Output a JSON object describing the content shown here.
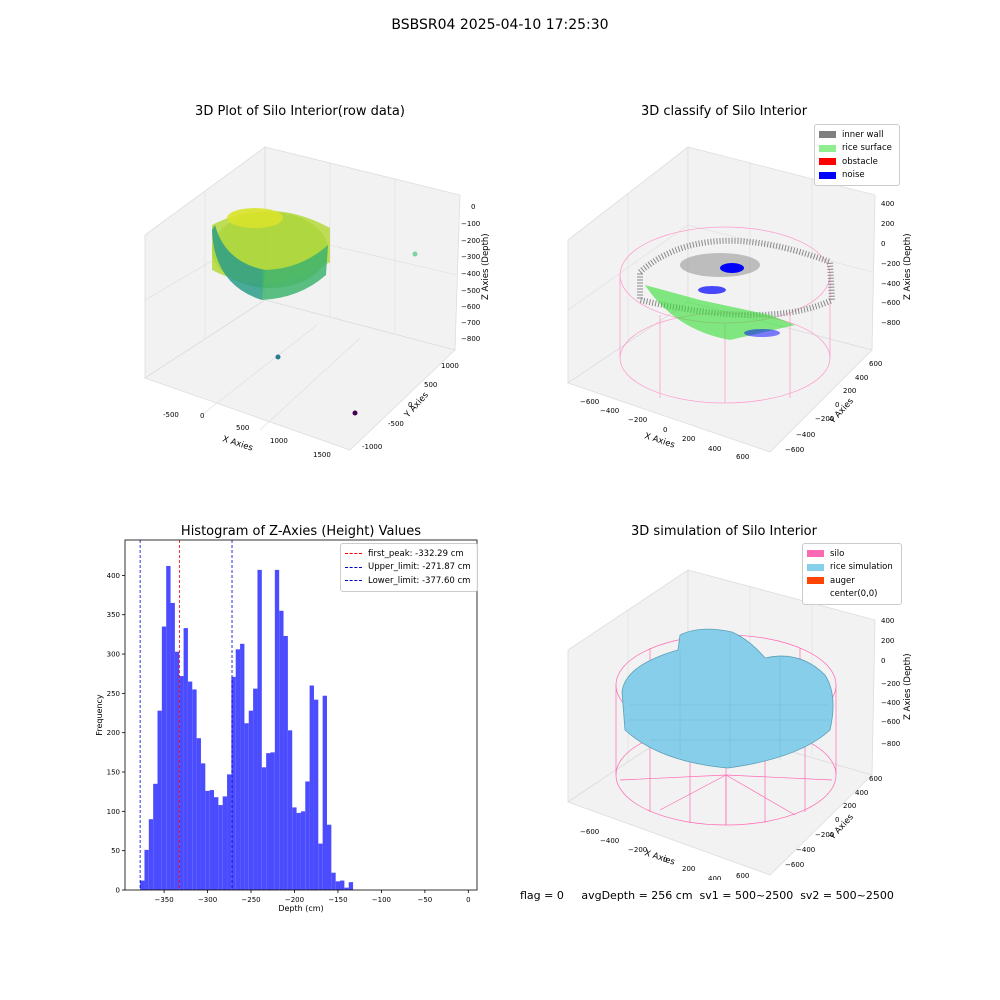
{
  "suptitle": "BSBSR04 2025-04-10 17:25:30",
  "panels": {
    "raw": {
      "title": "3D Plot of Silo Interior(row data)",
      "xlabel": "X Axies",
      "ylabel": "Y Axies",
      "zlabel": "Z Axies (Depth)",
      "xticks": [
        "-500",
        "0",
        "500",
        "1000",
        "1500"
      ],
      "yticks": [
        "1000",
        "500",
        "0",
        "-500",
        "-1000"
      ],
      "zticks": [
        "0",
        "−100",
        "−200",
        "−300",
        "−400",
        "−500",
        "−600",
        "−700",
        "−800"
      ]
    },
    "classify": {
      "title": "3D classify of Silo Interior",
      "xlabel": "X Axies",
      "ylabel": "Y Axies",
      "zlabel": "Z Axies (Depth)",
      "xticks": [
        "−600",
        "−400",
        "−200",
        "0",
        "200",
        "400",
        "600"
      ],
      "yticks": [
        "600",
        "400",
        "200",
        "0",
        "−200",
        "−400",
        "−600"
      ],
      "zticks": [
        "400",
        "200",
        "0",
        "−200",
        "−400",
        "−600",
        "−800"
      ],
      "legend": [
        {
          "label": "inner wall",
          "color": "#808080"
        },
        {
          "label": "rice surface",
          "color": "#90ee90"
        },
        {
          "label": "obstacle",
          "color": "#ff0000"
        },
        {
          "label": "noise",
          "color": "#0000ff"
        }
      ]
    },
    "simulation": {
      "title": "3D simulation of Silo Interior",
      "xlabel": "X Axies",
      "ylabel": "Y Axies",
      "zlabel": "Z Axies (Depth)",
      "xticks": [
        "−600",
        "−400",
        "−200",
        "0",
        "200",
        "400",
        "600"
      ],
      "yticks": [
        "600",
        "400",
        "200",
        "0",
        "−200",
        "−400",
        "−600"
      ],
      "zticks": [
        "400",
        "200",
        "0",
        "−200",
        "−400",
        "−600",
        "−800"
      ],
      "legend": [
        {
          "label": "silo",
          "color": "#ff69b4"
        },
        {
          "label": "rice simulation",
          "color": "#87ceeb"
        },
        {
          "label": "auger",
          "color": "#ff4500"
        },
        {
          "label": "center(0,0)",
          "color": "#ffffff"
        }
      ]
    }
  },
  "footer": "flag = 0     avgDepth = 256 cm  sv1 = 500~2500  sv2 = 500~2500",
  "chart_data": {
    "type": "bar",
    "title": "Histogram of Z-Axies (Height) Values",
    "xlabel": "Depth (cm)",
    "ylabel": "Frequency",
    "xlim": [
      -395,
      10
    ],
    "ylim": [
      0,
      445
    ],
    "xticks": [
      -350,
      -300,
      -250,
      -200,
      -150,
      -100,
      -50,
      0
    ],
    "yticks": [
      0,
      50,
      100,
      150,
      200,
      250,
      300,
      350,
      400
    ],
    "bar_color": "#4c4cff",
    "bin_start": -377.6,
    "bin_width": 5.0,
    "values": [
      12,
      51,
      90,
      135,
      228,
      335,
      412,
      365,
      303,
      272,
      333,
      265,
      255,
      193,
      161,
      126,
      127,
      118,
      108,
      119,
      147,
      271,
      306,
      313,
      212,
      228,
      256,
      407,
      156,
      174,
      175,
      407,
      355,
      323,
      203,
      105,
      98,
      100,
      138,
      260,
      242,
      59,
      247,
      83,
      22,
      11,
      12,
      3,
      10
    ],
    "vlines": [
      {
        "label": "first_peak: -332.29 cm",
        "x": -332.29,
        "color": "#ff0000"
      },
      {
        "label": "Upper_limit: -271.87 cm",
        "x": -271.87,
        "color": "#0000cc"
      },
      {
        "label": "Lower_limit: -377.60 cm",
        "x": -377.6,
        "color": "#0000cc"
      }
    ]
  }
}
